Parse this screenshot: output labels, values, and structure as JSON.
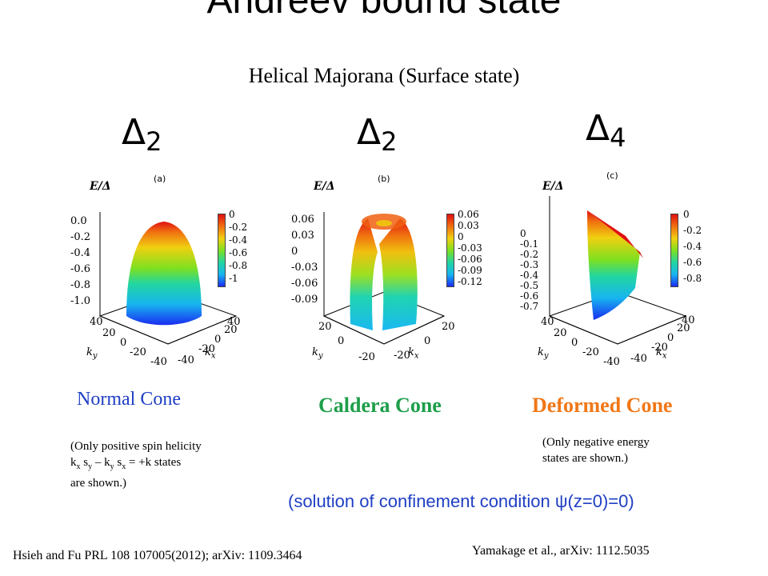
{
  "slide": {
    "title": "Andreev bound state",
    "subtitle": "Helical Majorana (Surface state)"
  },
  "deltas": [
    {
      "symbol": "Δ",
      "sub": "2"
    },
    {
      "symbol": "Δ",
      "sub": "2"
    },
    {
      "symbol": "Δ",
      "sub": "4"
    }
  ],
  "panels": [
    {
      "label": "(a)",
      "energy_label": "E/Δ",
      "z_ticks": [
        "0.0",
        "-0.2",
        "-0.4",
        "-0.6",
        "-0.8",
        "-1.0"
      ],
      "colorbar_ticks": [
        "0",
        "-0.2",
        "-0.4",
        "-0.6",
        "-0.8",
        "-1"
      ],
      "ky_ticks": [
        "40",
        "20",
        "0",
        "-20",
        "-40"
      ],
      "kx_ticks": [
        "-40",
        "-20",
        "0",
        "20",
        "40"
      ],
      "ky_label": "k_y",
      "kx_label": "k_x",
      "caption": "Normal Cone",
      "caption_color": "#1f3fc4"
    },
    {
      "label": "(b)",
      "energy_label": "E/Δ",
      "z_ticks": [
        "0.06",
        "0.03",
        "0",
        "-0.03",
        "-0.06",
        "-0.09"
      ],
      "colorbar_ticks": [
        "0.06",
        "0.03",
        "0",
        "-0.03",
        "-0.06",
        "-0.09",
        "-0.12"
      ],
      "ky_ticks": [
        "20",
        "0",
        "-20"
      ],
      "kx_ticks": [
        "-20",
        "0",
        "20"
      ],
      "ky_label": "k_y",
      "kx_label": "k_x",
      "caption": "Caldera Cone",
      "caption_color": "#1e9e4a"
    },
    {
      "label": "(c)",
      "energy_label": "E/Δ",
      "z_ticks": [
        "0",
        "-0.1",
        "-0.2",
        "-0.3",
        "-0.4",
        "-0.5",
        "-0.6",
        "-0.7"
      ],
      "colorbar_ticks": [
        "0",
        "-0.2",
        "-0.4",
        "-0.6",
        "-0.8"
      ],
      "ky_ticks": [
        "40",
        "20",
        "0",
        "-20",
        "-40"
      ],
      "kx_ticks": [
        "-40",
        "-20",
        "0",
        "20",
        "40"
      ],
      "ky_label": "k_y",
      "kx_label": "k_x",
      "caption": "Deformed Cone",
      "caption_color": "#f07818"
    }
  ],
  "notes": {
    "normal_line1": "(Only positive spin helicity",
    "normal_line2": "k",
    "normal_line2_full": "kx sy – ky sx = +k states",
    "normal_line3": "are shown.)",
    "deformed_line1": "(Only negative energy",
    "deformed_line2": "states are shown.)"
  },
  "confinement": "(solution of confinement condition  ψ(z=0)=0)",
  "references": {
    "left": "Hsieh and Fu  PRL 108 107005(2012); arXiv: 1109.3464",
    "right": "Yamakage et al., arXiv: 1112.5035"
  }
}
